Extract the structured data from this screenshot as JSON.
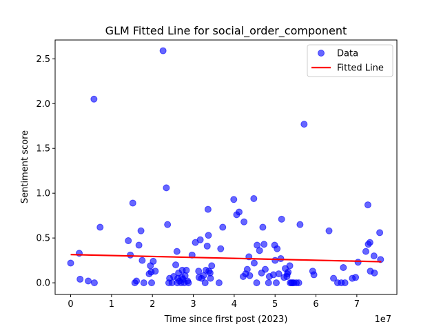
{
  "chart_data": {
    "type": "scatter",
    "title": "GLM Fitted Line for social_order_component",
    "xlabel": "Time since first post (2023)",
    "ylabel": "Sentiment score",
    "x_offset_text": "1e7",
    "xlim": [
      -0.38,
      7.98
    ],
    "ylim": [
      -0.13,
      2.71
    ],
    "xticks": [
      0,
      1,
      2,
      3,
      4,
      5,
      6,
      7
    ],
    "xtick_labels": [
      "0",
      "1",
      "2",
      "3",
      "4",
      "5",
      "6",
      "7"
    ],
    "yticks": [
      0.0,
      0.5,
      1.0,
      1.5,
      2.0,
      2.5
    ],
    "ytick_labels": [
      "0.0",
      "0.5",
      "1.0",
      "1.5",
      "2.0",
      "2.5"
    ],
    "legend_position": "upper right",
    "series": [
      {
        "name": "Data",
        "kind": "scatter",
        "color": "#0000ff",
        "alpha": 0.6,
        "points": [
          [
            0.0,
            0.22
          ],
          [
            0.21,
            0.33
          ],
          [
            0.23,
            0.04
          ],
          [
            0.43,
            0.02
          ],
          [
            0.57,
            2.05
          ],
          [
            0.58,
            0.0
          ],
          [
            0.72,
            0.62
          ],
          [
            1.41,
            0.47
          ],
          [
            1.46,
            0.31
          ],
          [
            1.52,
            0.89
          ],
          [
            1.57,
            0.0
          ],
          [
            1.61,
            0.02
          ],
          [
            1.67,
            0.42
          ],
          [
            1.72,
            0.58
          ],
          [
            1.75,
            0.25
          ],
          [
            1.79,
            0.0
          ],
          [
            1.92,
            0.1
          ],
          [
            1.95,
            0.19
          ],
          [
            1.97,
            0.12
          ],
          [
            1.98,
            0.0
          ],
          [
            2.02,
            0.24
          ],
          [
            2.07,
            0.13
          ],
          [
            2.26,
            2.59
          ],
          [
            2.34,
            1.06
          ],
          [
            2.37,
            0.65
          ],
          [
            2.4,
            0.0
          ],
          [
            2.42,
            0.05
          ],
          [
            2.48,
            0.0
          ],
          [
            2.52,
            0.07
          ],
          [
            2.57,
            0.2
          ],
          [
            2.6,
            0.35
          ],
          [
            2.61,
            0.0
          ],
          [
            2.62,
            0.05
          ],
          [
            2.64,
            0.11
          ],
          [
            2.66,
            0.02
          ],
          [
            2.7,
            0.0
          ],
          [
            2.72,
            0.06
          ],
          [
            2.73,
            0.14
          ],
          [
            2.75,
            0.04
          ],
          [
            2.78,
            0.0
          ],
          [
            2.8,
            0.08
          ],
          [
            2.83,
            0.14
          ],
          [
            2.86,
            0.02
          ],
          [
            2.88,
            0.0
          ],
          [
            2.97,
            0.31
          ],
          [
            3.05,
            0.45
          ],
          [
            3.13,
            0.13
          ],
          [
            3.14,
            0.06
          ],
          [
            3.17,
            0.48
          ],
          [
            3.2,
            0.05
          ],
          [
            3.25,
            0.08
          ],
          [
            3.29,
            0.0
          ],
          [
            3.31,
            0.14
          ],
          [
            3.34,
            0.41
          ],
          [
            3.36,
            0.82
          ],
          [
            3.37,
            0.53
          ],
          [
            3.38,
            0.13
          ],
          [
            3.41,
            0.11
          ],
          [
            3.42,
            0.05
          ],
          [
            3.45,
            0.19
          ],
          [
            3.63,
            0.0
          ],
          [
            3.67,
            0.38
          ],
          [
            3.72,
            0.62
          ],
          [
            3.99,
            0.93
          ],
          [
            4.06,
            0.76
          ],
          [
            4.12,
            0.79
          ],
          [
            4.22,
            0.07
          ],
          [
            4.24,
            0.68
          ],
          [
            4.28,
            0.1
          ],
          [
            4.32,
            0.15
          ],
          [
            4.36,
            0.29
          ],
          [
            4.38,
            0.08
          ],
          [
            4.48,
            0.94
          ],
          [
            4.49,
            0.22
          ],
          [
            4.55,
            0.0
          ],
          [
            4.56,
            0.42
          ],
          [
            4.62,
            0.36
          ],
          [
            4.67,
            0.11
          ],
          [
            4.7,
            0.62
          ],
          [
            4.73,
            0.43
          ],
          [
            4.76,
            0.15
          ],
          [
            4.84,
            0.0
          ],
          [
            4.86,
            0.07
          ],
          [
            4.96,
            0.09
          ],
          [
            4.99,
            0.42
          ],
          [
            5.0,
            0.25
          ],
          [
            5.03,
            0.0
          ],
          [
            5.05,
            0.38
          ],
          [
            5.09,
            0.1
          ],
          [
            5.14,
            0.27
          ],
          [
            5.16,
            0.71
          ],
          [
            5.22,
            0.06
          ],
          [
            5.25,
            0.16
          ],
          [
            5.29,
            0.07
          ],
          [
            5.3,
            0.1
          ],
          [
            5.32,
            0.12
          ],
          [
            5.36,
            0.19
          ],
          [
            5.37,
            0.0
          ],
          [
            5.4,
            0.0
          ],
          [
            5.43,
            0.0
          ],
          [
            5.46,
            0.0
          ],
          [
            5.52,
            0.0
          ],
          [
            5.58,
            0.0
          ],
          [
            5.61,
            0.65
          ],
          [
            5.71,
            1.77
          ],
          [
            5.92,
            0.13
          ],
          [
            5.95,
            0.09
          ],
          [
            6.32,
            0.58
          ],
          [
            6.43,
            0.05
          ],
          [
            6.53,
            0.0
          ],
          [
            6.62,
            0.0
          ],
          [
            6.67,
            0.17
          ],
          [
            6.71,
            0.0
          ],
          [
            6.89,
            0.05
          ],
          [
            6.97,
            0.06
          ],
          [
            7.03,
            0.23
          ],
          [
            7.22,
            0.35
          ],
          [
            7.27,
            0.87
          ],
          [
            7.28,
            0.43
          ],
          [
            7.32,
            0.45
          ],
          [
            7.33,
            0.13
          ],
          [
            7.42,
            0.3
          ],
          [
            7.43,
            0.11
          ],
          [
            7.56,
            0.56
          ],
          [
            7.58,
            0.26
          ]
        ]
      },
      {
        "name": "Fitted Line",
        "kind": "line",
        "color": "#ff0000",
        "points": [
          [
            0.0,
            0.315
          ],
          [
            7.6,
            0.235
          ]
        ]
      }
    ]
  }
}
